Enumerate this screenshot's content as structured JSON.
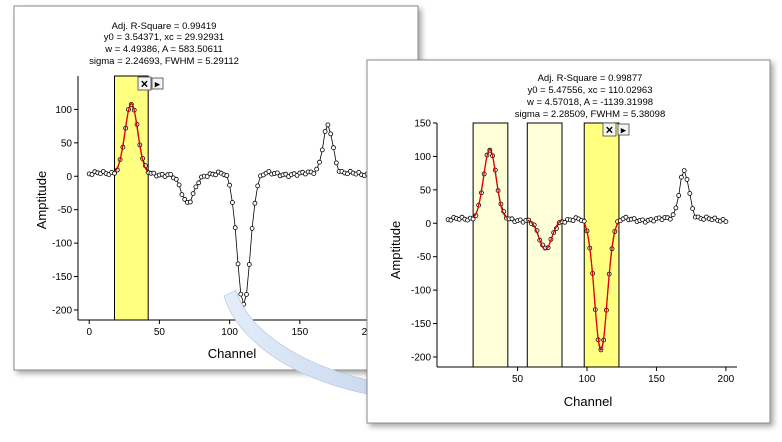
{
  "left_panel": {
    "fit_results": [
      "Adj. R-Square = 0.99419",
      "y0 = 3.54371, xc = 29.92931",
      "w = 4.49386, A = 583.50611",
      "sigma = 2.24693, FWHM = 5.29112"
    ],
    "close_glyph": "✕",
    "menu_glyph": "▶",
    "chart_data": {
      "type": "scatter",
      "title": "",
      "xlabel": "Channel",
      "ylabel": "Amptitude",
      "xlim": [
        -8,
        200
      ],
      "ylim": [
        -215,
        150
      ],
      "xticks": [
        "0",
        "50",
        "100",
        "150",
        "200"
      ],
      "yticks": [
        "100",
        "50",
        "0",
        "-50",
        "-100",
        "-150",
        "-200"
      ],
      "ytick_values": [
        100,
        50,
        0,
        -50,
        -100,
        -150,
        -200
      ],
      "xtick_values": [
        0,
        50,
        100,
        150,
        200
      ],
      "roi_ranges": [
        [
          18,
          42
        ]
      ],
      "active_roi": 0,
      "fitted_peak_index": 0,
      "peaks": [
        {
          "xc": 30,
          "w": 4.49,
          "A": 105
        },
        {
          "xc": 70,
          "w": 4.6,
          "A": -45
        },
        {
          "xc": 110,
          "w": 4.57,
          "A": -195
        },
        {
          "xc": 170,
          "w": 3.5,
          "A": 75
        }
      ],
      "baseline": 3.5,
      "noise": 4,
      "x_range": [
        0,
        200
      ],
      "x_step": 2
    }
  },
  "right_panel": {
    "fit_results": [
      "Adj. R-Square = 0.99877",
      "y0 = 5.47556, xc = 110.02963",
      "w = 4.57018, A = -1139.31998",
      "sigma = 2.28509, FWHM = 5.38098"
    ],
    "close_glyph": "✕",
    "menu_glyph": "▶",
    "chart_data": {
      "type": "scatter",
      "title": "",
      "xlabel": "Channel",
      "ylabel": "Amptitude",
      "xlim": [
        -8,
        208
      ],
      "ylim": [
        -215,
        150
      ],
      "xticks": [
        "50",
        "100",
        "150",
        "200"
      ],
      "xtick_values": [
        50,
        100,
        150,
        200
      ],
      "yticks": [
        "150",
        "100",
        "50",
        "0",
        "-50",
        "-100",
        "-150",
        "-200"
      ],
      "ytick_values": [
        150,
        100,
        50,
        0,
        -50,
        -100,
        -150,
        -200
      ],
      "roi_ranges": [
        [
          18,
          43
        ],
        [
          57,
          82
        ],
        [
          98,
          123
        ]
      ],
      "active_roi": 2,
      "fitted_peak_index": -1,
      "fitted_peaks": [
        0,
        1,
        2
      ],
      "peaks": [
        {
          "xc": 30,
          "w": 4.49,
          "A": 105
        },
        {
          "xc": 70,
          "w": 4.6,
          "A": -45
        },
        {
          "xc": 110,
          "w": 4.57,
          "A": -195
        },
        {
          "xc": 170,
          "w": 3.5,
          "A": 75
        }
      ],
      "baseline": 5.5,
      "noise": 4,
      "x_range": [
        0,
        200
      ],
      "x_step": 2
    }
  },
  "colors": {
    "roi_active": "#ffff80",
    "roi_inactive": "#ffffd8",
    "fit_curve": "#e00000",
    "data_marker": "#000000",
    "arrow": "#c6d7ef"
  }
}
